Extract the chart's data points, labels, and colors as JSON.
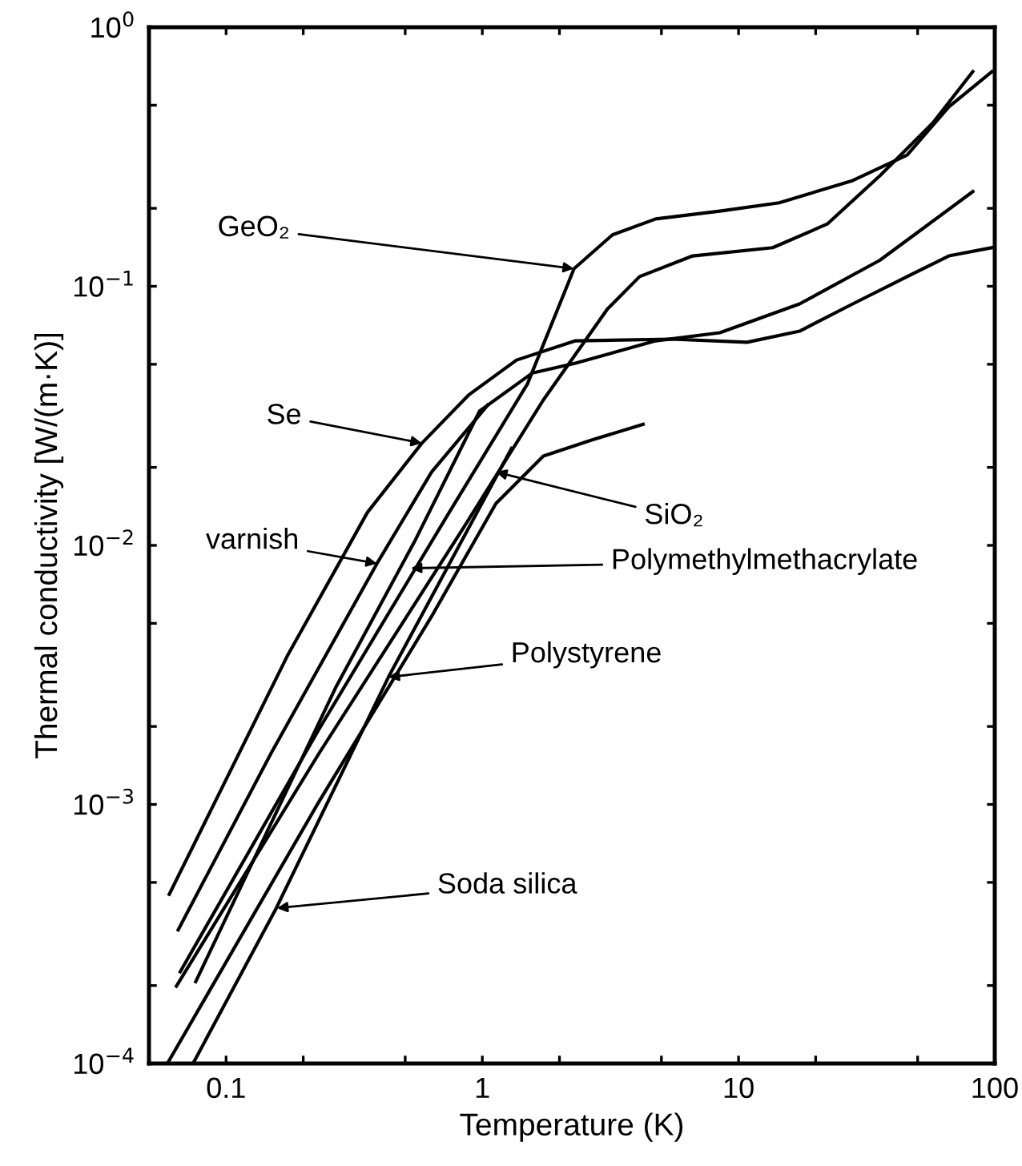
{
  "chart_data": {
    "type": "line",
    "xlabel": "Temperature (K)",
    "ylabel": "Thermal conductivity [W/(m·K)]",
    "log": "xy",
    "grid": false,
    "legend": false,
    "marker": "none",
    "line_style": "solid",
    "xlim": [
      0.05,
      100
    ],
    "ylim": [
      0.0001,
      1
    ],
    "xticks": [
      {
        "value": 0.1,
        "label": "0.1"
      },
      {
        "value": 0.2,
        "label": null
      },
      {
        "value": 0.5,
        "label": null
      },
      1,
      {
        "value": 2,
        "label": null
      },
      {
        "value": 5,
        "label": null
      },
      10,
      {
        "value": 20,
        "label": null
      },
      {
        "value": 50,
        "label": null
      },
      100
    ],
    "yticks": [
      {
        "value": 0.0001,
        "label": "10$^{−4}$"
      },
      {
        "value": 0.0002,
        "label": null
      },
      {
        "value": 0.0005,
        "label": null
      },
      {
        "value": 0.001,
        "label": "10$^{−3}$"
      },
      {
        "value": 0.002,
        "label": null
      },
      {
        "value": 0.005,
        "label": null
      },
      {
        "value": 0.01,
        "label": "10$^{−2}$"
      },
      {
        "value": 0.02,
        "label": null
      },
      {
        "value": 0.05,
        "label": null
      },
      {
        "value": 0.1,
        "label": "10$^{−1}$"
      },
      {
        "value": 0.2,
        "label": null
      },
      {
        "value": 0.5,
        "label": null
      },
      {
        "value": 1,
        "label": "10$^{0}$"
      }
    ],
    "series": [
      {
        "color": "#000000",
        "x": [
          0.06,
          0.173,
          0.356,
          0.581,
          0.883,
          1.36,
          2.31,
          5.48,
          10.8,
          17.3,
          27.9,
          45.5,
          66.2,
          97.5
        ],
        "values": [
          0.00045,
          0.00373,
          0.0134,
          0.0248,
          0.038,
          0.0519,
          0.0616,
          0.0625,
          0.0608,
          0.0671,
          0.0855,
          0.109,
          0.131,
          0.141
        ]
      },
      {
        "color": "#000000",
        "x": [
          0.065,
          0.15,
          0.388,
          0.634,
          1.05
        ],
        "values": [
          0.000328,
          0.00158,
          0.00851,
          0.0192,
          0.0348
        ]
      },
      {
        "color": "#000000",
        "x": [
          0.0662,
          0.231,
          0.732,
          1.5,
          2.28,
          3.22,
          4.75,
          8.45,
          14.4,
          27.9,
          45.5,
          66.2,
          97.5
        ],
        "values": [
          0.000226,
          0.00196,
          0.0131,
          0.042,
          0.117,
          0.158,
          0.182,
          0.195,
          0.21,
          0.256,
          0.321,
          0.493,
          0.674
        ]
      },
      {
        "color": "#000000",
        "x": [
          0.064,
          0.231,
          0.845,
          1.73,
          3.08,
          4.11,
          6.62,
          13.6,
          22.2,
          35.6,
          57.3,
          82.1
        ],
        "values": [
          0.000199,
          0.00158,
          0.0117,
          0.0364,
          0.0818,
          0.109,
          0.131,
          0.141,
          0.174,
          0.267,
          0.427,
          0.674
        ]
      },
      {
        "color": "#000000",
        "x": [
          0.0761,
          0.267,
          0.548,
          0.976,
          1.57,
          2.31,
          4.75,
          8.45,
          17.3,
          35.6,
          82.1
        ],
        "values": [
          0.000207,
          0.00281,
          0.0105,
          0.033,
          0.0463,
          0.0505,
          0.0616,
          0.0662,
          0.0855,
          0.126,
          0.232
        ]
      },
      {
        "color": "#000000",
        "x": [
          0.059,
          0.231,
          0.634,
          1.13,
          1.73,
          2.67,
          4.24
        ],
        "values": [
          0.0001,
          0.00103,
          0.00532,
          0.0145,
          0.0221,
          0.0255,
          0.0293
        ]
      },
      {
        "color": "#000000",
        "x": [
          0.0743,
          0.157,
          0.43,
          1.3
        ],
        "values": [
          0.0001,
          0.000398,
          0.0031,
          0.0237
        ]
      }
    ],
    "annotations": [
      {
        "text": "GeO₂",
        "x": 2.28,
        "y": 0.117
      },
      {
        "text": "Se",
        "x": 0.581,
        "y": 0.0248
      },
      {
        "text": "varnish",
        "x": 0.388,
        "y": 0.00851
      },
      {
        "text": "SiO₂",
        "x": 1.13,
        "y": 0.0192
      },
      {
        "text": "Polymethylmethacrylate",
        "x": 0.526,
        "y": 0.00816
      },
      {
        "text": "Polystyrene",
        "x": 0.43,
        "y": 0.0031
      },
      {
        "text": "Soda silica",
        "x": 0.158,
        "y": 0.000398
      }
    ]
  }
}
